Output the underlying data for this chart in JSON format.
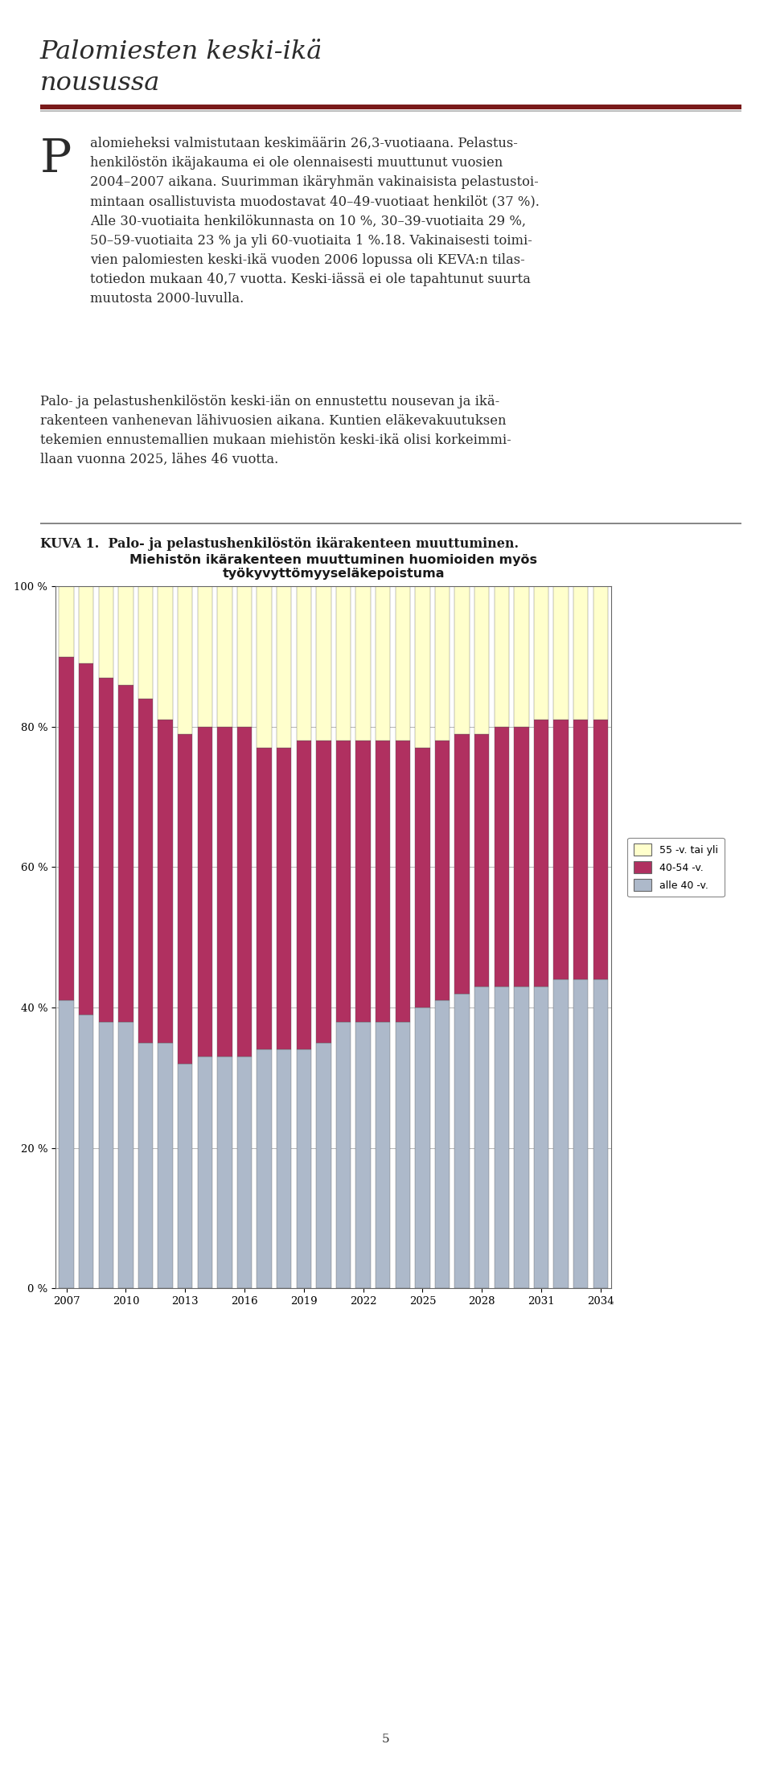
{
  "chart_title1": "Miehistön ikärakenteen muuttuminen huomioiden myös",
  "chart_title2": "työkyvyttömyyseläkepoistuma",
  "years": [
    2007,
    2008,
    2009,
    2010,
    2011,
    2012,
    2013,
    2014,
    2015,
    2016,
    2017,
    2018,
    2019,
    2020,
    2021,
    2022,
    2023,
    2024,
    2025,
    2026,
    2027,
    2028,
    2029,
    2030,
    2031,
    2032,
    2033,
    2034
  ],
  "alle40": [
    41,
    39,
    38,
    38,
    35,
    35,
    32,
    33,
    33,
    33,
    34,
    34,
    34,
    35,
    38,
    38,
    38,
    38,
    40,
    41,
    42,
    43,
    43,
    43,
    43,
    44,
    44,
    44
  ],
  "mid4054": [
    49,
    50,
    49,
    48,
    49,
    46,
    47,
    47,
    47,
    47,
    43,
    43,
    44,
    43,
    40,
    40,
    40,
    40,
    37,
    37,
    37,
    36,
    37,
    37,
    38,
    37,
    37,
    37
  ],
  "top55": [
    10,
    11,
    13,
    14,
    16,
    19,
    21,
    20,
    20,
    20,
    23,
    23,
    22,
    22,
    22,
    22,
    22,
    22,
    23,
    22,
    21,
    21,
    20,
    20,
    19,
    19,
    19,
    19
  ],
  "color_alle40": "#adb9ca",
  "color_mid4054": "#b03060",
  "color_top55": "#ffffcc",
  "legend_55": "55 -v. tai yli",
  "legend_40": "40-54 -v.",
  "legend_alle": "alle 40 -v.",
  "page_number": "5",
  "background_color": "#ffffff"
}
